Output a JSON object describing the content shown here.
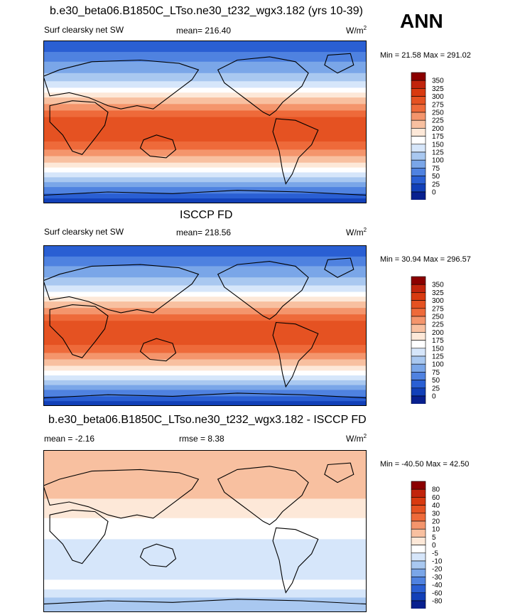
{
  "season": "ANN",
  "chart_data": [
    {
      "type": "heatmap",
      "title": "b.e30_beta06.B1850C_LTso.ne30_t232_wgx3.182 (yrs 10-39)",
      "left_label": "Surf clearsky net SW",
      "stat_label": "mean= 216.40",
      "units": "W/m",
      "units_sup": "2",
      "minmax": "Min =  21.58 Max = 291.02",
      "levels": [
        "350",
        "325",
        "300",
        "275",
        "250",
        "225",
        "200",
        "175",
        "150",
        "125",
        "100",
        "75",
        "50",
        "25",
        "0"
      ],
      "colors": [
        "#8b0000",
        "#c1240c",
        "#d83a10",
        "#e55222",
        "#ee6a3a",
        "#f4956c",
        "#f8c0a0",
        "#fde8d8",
        "#ffffff",
        "#d6e6fa",
        "#a9c8f0",
        "#7aa6e8",
        "#4f82e0",
        "#2a5fd3",
        "#1240b8",
        "#08208f"
      ]
    },
    {
      "type": "heatmap",
      "title": "ISCCP FD",
      "left_label": "Surf clearsky net SW",
      "stat_label": "mean= 218.56",
      "units": "W/m",
      "units_sup": "2",
      "minmax": "Min =  30.94 Max = 296.57",
      "levels": [
        "350",
        "325",
        "300",
        "275",
        "250",
        "225",
        "200",
        "175",
        "150",
        "125",
        "100",
        "75",
        "50",
        "25",
        "0"
      ],
      "colors": [
        "#8b0000",
        "#c1240c",
        "#d83a10",
        "#e55222",
        "#ee6a3a",
        "#f4956c",
        "#f8c0a0",
        "#fde8d8",
        "#ffffff",
        "#d6e6fa",
        "#a9c8f0",
        "#7aa6e8",
        "#4f82e0",
        "#2a5fd3",
        "#1240b8",
        "#08208f"
      ]
    },
    {
      "type": "heatmap",
      "title": "b.e30_beta06.B1850C_LTso.ne30_t232_wgx3.182 - ISCCP FD",
      "left_label": "mean =  -2.16",
      "stat_label": "rmse =   8.38",
      "units": "W/m",
      "units_sup": "2",
      "minmax": "Min = -40.50 Max =  42.50",
      "levels": [
        "80",
        "60",
        "40",
        "30",
        "20",
        "10",
        "5",
        "0",
        "-5",
        "-10",
        "-20",
        "-30",
        "-40",
        "-60",
        "-80"
      ],
      "colors": [
        "#8b0000",
        "#c1240c",
        "#d83a10",
        "#e55222",
        "#ee6a3a",
        "#f4956c",
        "#f8c0a0",
        "#fde8d8",
        "#ffffff",
        "#d6e6fa",
        "#a9c8f0",
        "#7aa6e8",
        "#4f82e0",
        "#2a5fd3",
        "#1240b8",
        "#08208f"
      ]
    }
  ]
}
